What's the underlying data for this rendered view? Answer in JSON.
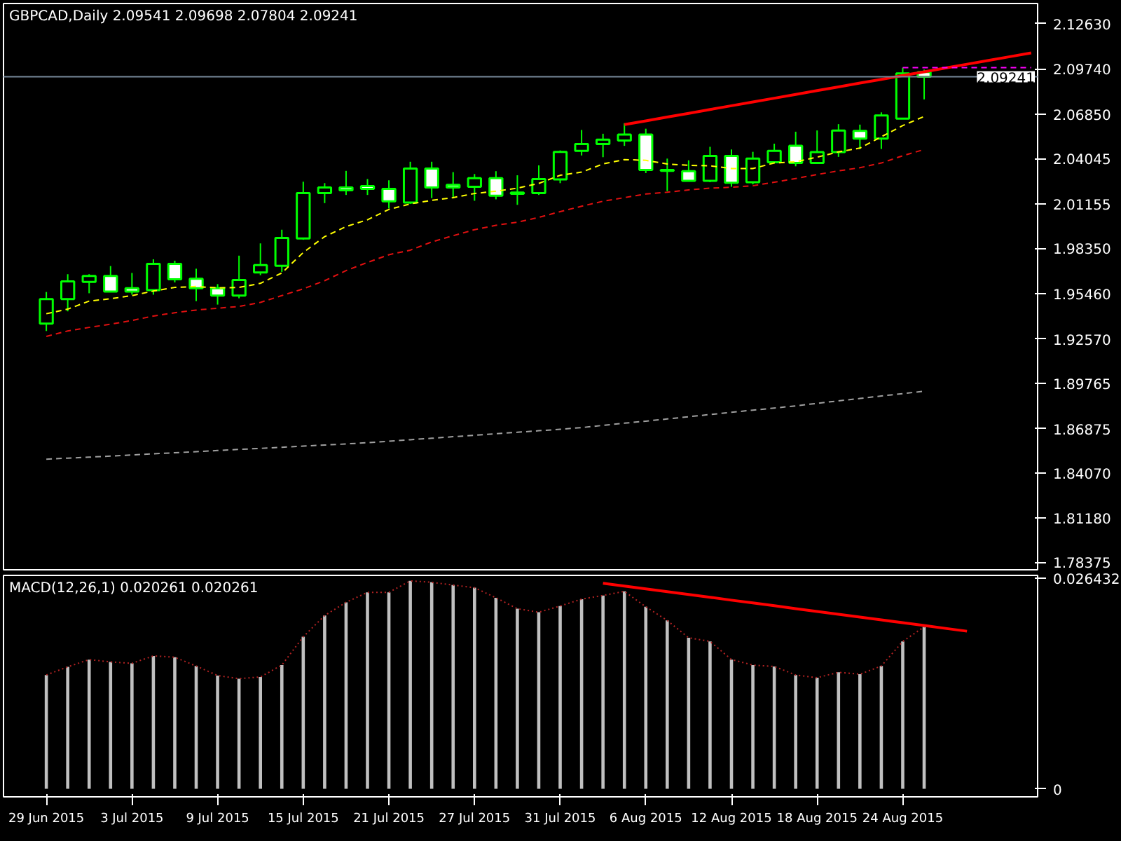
{
  "chart_data": [
    {
      "type": "candlestick",
      "title": "GBPCAD,Daily  2.09541 2.09698 2.07804 2.09241",
      "categories": [
        null,
        null,
        null,
        null,
        null,
        null,
        null,
        null,
        null,
        null,
        null,
        null,
        null,
        null,
        null,
        null,
        null,
        null,
        null,
        null,
        null,
        null,
        null,
        null,
        null,
        null,
        null,
        null,
        null,
        null,
        null,
        null,
        null,
        null,
        null,
        null,
        null,
        null,
        null,
        null,
        null,
        null,
        null,
        null,
        null,
        null,
        null
      ],
      "ohlc": [
        [
          1.9355,
          1.9556,
          1.9308,
          1.9511
        ],
        [
          1.9511,
          1.9669,
          1.9433,
          1.9623
        ],
        [
          1.962,
          1.9669,
          1.9548,
          1.9658
        ],
        [
          1.9658,
          1.9721,
          1.9559,
          1.9559
        ],
        [
          1.958,
          1.9677,
          1.9539,
          1.9559
        ],
        [
          1.9568,
          1.9764,
          1.9539,
          1.9735
        ],
        [
          1.9735,
          1.9755,
          1.9617,
          1.9637
        ],
        [
          1.964,
          1.9704,
          1.9498,
          1.958
        ],
        [
          1.958,
          1.9606,
          1.9476,
          1.9533
        ],
        [
          1.9533,
          1.9787,
          1.9516,
          1.9632
        ],
        [
          1.968,
          1.9865,
          1.9663,
          1.9727
        ],
        [
          1.9723,
          1.9952,
          1.9684,
          1.99
        ],
        [
          1.9896,
          2.0257,
          1.9888,
          2.0185
        ],
        [
          2.0185,
          2.0248,
          2.0121,
          2.022
        ],
        [
          2.022,
          2.0326,
          2.0173,
          2.0203
        ],
        [
          2.0229,
          2.0274,
          2.0173,
          2.0211
        ],
        [
          2.0211,
          2.0266,
          2.0087,
          2.0133
        ],
        [
          2.0125,
          2.0384,
          2.0116,
          2.0341
        ],
        [
          2.0341,
          2.0384,
          2.0153,
          2.022
        ],
        [
          2.0237,
          2.0318,
          2.0151,
          2.022
        ],
        [
          2.0225,
          2.0306,
          2.0136,
          2.028
        ],
        [
          2.028,
          2.0324,
          2.0145,
          2.0168
        ],
        [
          2.0188,
          2.0298,
          2.011,
          2.018
        ],
        [
          2.0185,
          2.0361,
          2.0173,
          2.0274
        ],
        [
          2.0272,
          2.0456,
          2.0248,
          2.0447
        ],
        [
          2.0453,
          2.0586,
          2.0424,
          2.0497
        ],
        [
          2.0497,
          2.0562,
          2.0413,
          2.0525
        ],
        [
          2.0519,
          2.0629,
          2.0485,
          2.0557
        ],
        [
          2.0557,
          2.0594,
          2.0312,
          2.0332
        ],
        [
          2.0332,
          2.0404,
          2.0197,
          2.0326
        ],
        [
          2.0324,
          2.0393,
          2.0263,
          2.0263
        ],
        [
          2.0263,
          2.0479,
          2.0254,
          2.0421
        ],
        [
          2.0421,
          2.0462,
          2.0225,
          2.0251
        ],
        [
          2.0254,
          2.0447,
          2.024,
          2.0404
        ],
        [
          2.0381,
          2.0499,
          2.0378,
          2.0453
        ],
        [
          2.0485,
          2.0575,
          2.0355,
          2.0376
        ],
        [
          2.0376,
          2.0583,
          2.037,
          2.0445
        ],
        [
          2.0445,
          2.0623,
          2.0415,
          2.0583
        ],
        [
          2.058,
          2.062,
          2.0465,
          2.0531
        ],
        [
          2.0531,
          2.0698,
          2.0465,
          2.0678
        ],
        [
          2.0658,
          2.0982,
          2.0658,
          2.0946
        ],
        [
          2.09541,
          2.09698,
          2.07804,
          2.09241
        ],
        null,
        null,
        null,
        null,
        null
      ],
      "color": "#00ff00",
      "colors": [
        "#000000",
        "#000000",
        "#000000",
        "#ffffff",
        "#ffffff",
        "#000000",
        "#ffffff",
        "#ffffff",
        "#ffffff",
        "#000000",
        "#000000",
        "#000000",
        "#000000",
        "#000000",
        "#ffffff",
        "#ffffff",
        "#ffffff",
        "#000000",
        "#ffffff",
        "#ffffff",
        "#000000",
        "#ffffff",
        "#00ff00",
        "#000000",
        "#000000",
        "#000000",
        "#000000",
        "#000000",
        "#ffffff",
        "#00ff00",
        "#ffffff",
        "#000000",
        "#ffffff",
        "#000000",
        "#000000",
        "#ffffff",
        "#000000",
        "#000000",
        "#ffffff",
        "#000000",
        "#000000",
        "#ffffff",
        null,
        null,
        null,
        null,
        null
      ],
      "series": [
        {
          "type": "line",
          "color": "#ffff00",
          "line_style": "dashed",
          "values": [
            1.9418,
            1.9447,
            1.9498,
            1.9513,
            1.9533,
            1.9562,
            1.9585,
            1.9591,
            1.9582,
            1.9585,
            1.9611,
            1.9677,
            1.9807,
            1.9908,
            1.9972,
            2.0015,
            2.0081,
            2.0116,
            2.0139,
            2.0156,
            2.0182,
            2.0197,
            2.0216,
            2.0246,
            2.0298,
            2.0318,
            2.037,
            2.0398,
            2.0393,
            2.037,
            2.0361,
            2.0358,
            2.0341,
            2.0341,
            2.0376,
            2.0384,
            2.0413,
            2.0447,
            2.0471,
            2.0543,
            2.0614,
            2.0672,
            null,
            null,
            null,
            null,
            null
          ]
        },
        {
          "type": "line",
          "color": "#e01010",
          "line_style": "dashed",
          "values": [
            1.9274,
            1.9308,
            1.9331,
            1.9351,
            1.9375,
            1.9403,
            1.9424,
            1.9441,
            1.9453,
            1.9464,
            1.949,
            1.9533,
            1.9576,
            1.9628,
            1.9692,
            1.9744,
            1.9793,
            1.9822,
            1.9874,
            1.9914,
            1.9952,
            1.998,
            2.0,
            2.003,
            2.0067,
            2.0101,
            2.0133,
            2.0156,
            2.0179,
            2.019,
            2.0205,
            2.0216,
            2.0222,
            2.0231,
            2.0254,
            2.0277,
            2.0303,
            2.0326,
            2.0346,
            2.0376,
            2.0422,
            2.0462,
            null,
            null,
            null,
            null,
            null
          ]
        },
        {
          "type": "line",
          "color": "#a0a0a0",
          "line_style": "dashed",
          "values": [
            1.8493,
            1.85,
            1.8506,
            1.8513,
            1.852,
            1.8527,
            1.8534,
            1.8541,
            1.8548,
            1.8555,
            1.8562,
            1.8569,
            1.8576,
            1.8583,
            1.859,
            1.8598,
            1.8607,
            1.8617,
            1.8626,
            1.8636,
            1.8645,
            1.8655,
            1.8664,
            1.8674,
            1.8683,
            1.8694,
            1.8708,
            1.8722,
            1.8735,
            1.8749,
            1.8763,
            1.8777,
            1.8791,
            1.8805,
            1.8818,
            1.8832,
            1.8848,
            1.8864,
            1.8879,
            1.8895,
            1.891,
            1.8925,
            null,
            null,
            null,
            null,
            null
          ]
        },
        {
          "type": "line",
          "color": "#ff0000",
          "line_style": "solid",
          "values": [
            null,
            null,
            null,
            null,
            null,
            null,
            null,
            null,
            null,
            null,
            null,
            null,
            null,
            null,
            null,
            null,
            null,
            null,
            null,
            null,
            null,
            null,
            null,
            null,
            null,
            null,
            null,
            2.062,
            2.0644,
            2.0668,
            2.0692,
            2.0716,
            2.074,
            2.0764,
            2.0788,
            2.0812,
            2.0836,
            2.086,
            2.0884,
            2.0908,
            2.0932,
            2.0956,
            2.098,
            2.1004,
            2.1028,
            2.1052,
            2.1076
          ]
        },
        {
          "type": "line",
          "color": "#ff00ff",
          "line_style": "dashed",
          "values": [
            null,
            null,
            null,
            null,
            null,
            null,
            null,
            null,
            null,
            null,
            null,
            null,
            null,
            null,
            null,
            null,
            null,
            null,
            null,
            null,
            null,
            null,
            null,
            null,
            null,
            null,
            null,
            null,
            null,
            null,
            null,
            null,
            null,
            null,
            null,
            null,
            null,
            null,
            null,
            null,
            2.0982,
            2.0982,
            2.0982,
            2.0982,
            2.0982,
            2.0982,
            2.0982
          ]
        }
      ],
      "ylim": [
        1.779,
        2.139
      ],
      "yticks": [
        {
          "value": 2.1263,
          "label": "2.12630"
        },
        {
          "value": 2.0974,
          "label": "2.09740"
        },
        {
          "value": 2.0685,
          "label": "2.06850"
        },
        2.04045,
        2.01155,
        {
          "value": 1.9835,
          "label": "1.98350"
        },
        {
          "value": 1.9546,
          "label": "1.95460"
        },
        {
          "value": 1.9257,
          "label": "1.92570"
        },
        1.89765,
        1.86875,
        {
          "value": 1.8407,
          "label": "1.84070"
        },
        {
          "value": 1.8118,
          "label": "1.81180"
        },
        1.78375
      ],
      "ref_lines": [
        {
          "axis": "y",
          "value": 2.09241,
          "label": "2.09241",
          "color": "#778899"
        }
      ],
      "tick_labels": "y"
    },
    {
      "type": "bar",
      "title": "MACD(12,26,1) 0.020261 0.020261",
      "categories": [
        "29 Jun 2015",
        null,
        null,
        null,
        "3 Jul 2015",
        null,
        null,
        null,
        "9 Jul 2015",
        null,
        null,
        null,
        "15 Jul 2015",
        null,
        null,
        null,
        "21 Jul 2015",
        null,
        null,
        null,
        "27 Jul 2015",
        null,
        null,
        null,
        "31 Jul 2015",
        null,
        null,
        null,
        "6 Aug 2015",
        null,
        null,
        null,
        "12 Aug 2015",
        null,
        null,
        null,
        "18 Aug 2015",
        null,
        null,
        null,
        "24 Aug 2015",
        null,
        null,
        null,
        null,
        null,
        null
      ],
      "series": [
        {
          "type": "bar",
          "color": "#c0c0c0",
          "values": [
            0.01424,
            0.01526,
            0.01617,
            0.01588,
            0.0157,
            0.01663,
            0.01646,
            0.01536,
            0.01417,
            0.01378,
            0.014,
            0.01548,
            0.01902,
            0.02168,
            0.02333,
            0.02458,
            0.02458,
            0.02601,
            0.02584,
            0.0255,
            0.02516,
            0.0239,
            0.02253,
            0.02209,
            0.02287,
            0.02373,
            0.02419,
            0.0247,
            0.02277,
            0.02106,
            0.0189,
            0.01844,
            0.01617,
            0.01548,
            0.01531,
            0.01424,
            0.0139,
            0.01458,
            0.01434,
            0.01536,
            0.01844,
            0.020261,
            null,
            null,
            null,
            null,
            null
          ]
        },
        {
          "type": "line",
          "color": "#b22222",
          "line_style": "dotted",
          "values": [
            0.01424,
            0.01526,
            0.01617,
            0.01588,
            0.0157,
            0.01663,
            0.01646,
            0.01536,
            0.01417,
            0.01378,
            0.014,
            0.01548,
            0.01902,
            0.02168,
            0.02333,
            0.02458,
            0.02458,
            0.02601,
            0.02584,
            0.0255,
            0.02516,
            0.0239,
            0.02253,
            0.02209,
            0.02287,
            0.02373,
            0.02419,
            0.0247,
            0.02277,
            0.02106,
            0.0189,
            0.01844,
            0.01617,
            0.01548,
            0.01531,
            0.01424,
            0.0139,
            0.01458,
            0.01434,
            0.01536,
            0.01844,
            0.020261,
            null,
            null,
            null,
            null,
            null
          ]
        },
        {
          "type": "line",
          "color": "#ff0000",
          "line_style": "solid",
          "values": [
            null,
            null,
            null,
            null,
            null,
            null,
            null,
            null,
            null,
            null,
            null,
            null,
            null,
            null,
            null,
            null,
            null,
            null,
            null,
            null,
            null,
            null,
            null,
            null,
            null,
            null,
            0.02572,
            0.02537,
            0.02501,
            0.02466,
            0.02431,
            0.02396,
            0.0236,
            0.02325,
            0.0229,
            0.02254,
            0.02219,
            0.02184,
            0.02148,
            0.02113,
            0.02078,
            0.02043,
            0.02007,
            0.01972,
            null,
            null,
            null
          ]
        }
      ],
      "ylim": [
        -0.001,
        0.0267
      ],
      "yticks": [
        0,
        0.026432
      ]
    }
  ]
}
